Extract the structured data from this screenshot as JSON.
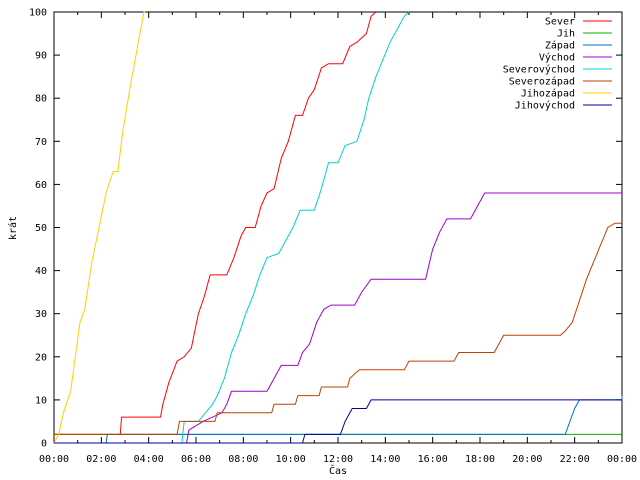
{
  "chart_data": {
    "type": "line",
    "title": "",
    "xlabel": "Čas",
    "ylabel": "krát",
    "xlim": [
      0,
      24
    ],
    "ylim": [
      0,
      100
    ],
    "x_ticks": [
      "00:00",
      "02:00",
      "04:00",
      "06:00",
      "08:00",
      "10:00",
      "12:00",
      "14:00",
      "16:00",
      "18:00",
      "20:00",
      "22:00",
      "00:00"
    ],
    "y_ticks": [
      0,
      10,
      20,
      30,
      40,
      50,
      60,
      70,
      80,
      90,
      100
    ],
    "grid": false,
    "legend_position": "top-right",
    "series": [
      {
        "name": "Sever",
        "color": "#ff0000",
        "points": [
          [
            0,
            2
          ],
          [
            2.8,
            2
          ],
          [
            2.85,
            6
          ],
          [
            4.5,
            6
          ],
          [
            4.6,
            9
          ],
          [
            4.85,
            14
          ],
          [
            5.2,
            19
          ],
          [
            5.5,
            20
          ],
          [
            5.8,
            22
          ],
          [
            6.1,
            30
          ],
          [
            6.35,
            34
          ],
          [
            6.6,
            39
          ],
          [
            7.3,
            39
          ],
          [
            7.6,
            43
          ],
          [
            7.9,
            48
          ],
          [
            8.1,
            50
          ],
          [
            8.5,
            50
          ],
          [
            8.75,
            55
          ],
          [
            9.0,
            58
          ],
          [
            9.3,
            59
          ],
          [
            9.6,
            66
          ],
          [
            9.9,
            70
          ],
          [
            10.2,
            76
          ],
          [
            10.5,
            76
          ],
          [
            10.75,
            80
          ],
          [
            11.0,
            82
          ],
          [
            11.3,
            87
          ],
          [
            11.6,
            88
          ],
          [
            12.2,
            88
          ],
          [
            12.5,
            92
          ],
          [
            12.8,
            93
          ],
          [
            13.2,
            95
          ],
          [
            13.4,
            99
          ],
          [
            13.6,
            100
          ]
        ]
      },
      {
        "name": "Jih",
        "color": "#00b000",
        "points": [
          [
            0,
            2
          ],
          [
            24,
            2
          ]
        ]
      },
      {
        "name": "Západ",
        "color": "#0070c0",
        "points": [
          [
            0,
            0
          ],
          [
            2.2,
            0
          ],
          [
            2.25,
            2
          ],
          [
            21.6,
            2
          ],
          [
            21.8,
            5
          ],
          [
            22.0,
            8
          ],
          [
            22.2,
            10
          ],
          [
            24,
            10
          ],
          [
            24,
            11
          ]
        ]
      },
      {
        "name": "Východ",
        "color": "#a000d0",
        "points": [
          [
            0,
            0
          ],
          [
            5.6,
            0
          ],
          [
            5.7,
            3
          ],
          [
            6.3,
            5
          ],
          [
            7.1,
            7
          ],
          [
            7.3,
            9
          ],
          [
            7.5,
            12
          ],
          [
            9.0,
            12
          ],
          [
            9.3,
            15
          ],
          [
            9.6,
            18
          ],
          [
            10.3,
            18
          ],
          [
            10.5,
            21
          ],
          [
            10.8,
            23
          ],
          [
            11.1,
            28
          ],
          [
            11.4,
            31
          ],
          [
            11.7,
            32
          ],
          [
            12.7,
            32
          ],
          [
            13.0,
            35
          ],
          [
            13.4,
            38
          ],
          [
            15.7,
            38
          ],
          [
            16.0,
            45
          ],
          [
            16.3,
            49
          ],
          [
            16.6,
            52
          ],
          [
            17.6,
            52
          ],
          [
            17.9,
            55
          ],
          [
            18.2,
            58
          ],
          [
            24,
            58
          ]
        ]
      },
      {
        "name": "Severovýchod",
        "color": "#00d0d0",
        "points": [
          [
            0,
            0
          ],
          [
            5.4,
            0
          ],
          [
            5.5,
            5
          ],
          [
            6.1,
            5
          ],
          [
            6.4,
            7
          ],
          [
            6.7,
            9
          ],
          [
            6.9,
            11
          ],
          [
            7.2,
            15
          ],
          [
            7.5,
            21
          ],
          [
            7.8,
            25
          ],
          [
            8.1,
            30
          ],
          [
            8.4,
            34
          ],
          [
            8.7,
            39
          ],
          [
            9.0,
            43
          ],
          [
            9.5,
            44
          ],
          [
            9.8,
            47
          ],
          [
            10.1,
            50
          ],
          [
            10.4,
            54
          ],
          [
            11.0,
            54
          ],
          [
            11.3,
            59
          ],
          [
            11.6,
            65
          ],
          [
            12.0,
            65
          ],
          [
            12.3,
            69
          ],
          [
            12.8,
            70
          ],
          [
            13.1,
            75
          ],
          [
            13.3,
            80
          ],
          [
            13.6,
            85
          ],
          [
            13.9,
            89
          ],
          [
            14.2,
            93
          ],
          [
            14.5,
            96
          ],
          [
            14.8,
            99
          ],
          [
            15.0,
            100
          ]
        ]
      },
      {
        "name": "Severozápad",
        "color": "#c04000",
        "points": [
          [
            0,
            2
          ],
          [
            5.2,
            2
          ],
          [
            5.3,
            5
          ],
          [
            6.8,
            5
          ],
          [
            6.9,
            7
          ],
          [
            9.2,
            7
          ],
          [
            9.3,
            9
          ],
          [
            10.2,
            9
          ],
          [
            10.3,
            11
          ],
          [
            11.2,
            11
          ],
          [
            11.3,
            13
          ],
          [
            12.4,
            13
          ],
          [
            12.5,
            15
          ],
          [
            12.9,
            17
          ],
          [
            14.8,
            17
          ],
          [
            15.0,
            19
          ],
          [
            16.9,
            19
          ],
          [
            17.1,
            21
          ],
          [
            18.6,
            21
          ],
          [
            18.8,
            23
          ],
          [
            19.0,
            25
          ],
          [
            21.4,
            25
          ],
          [
            21.6,
            26
          ],
          [
            21.9,
            28
          ],
          [
            22.2,
            33
          ],
          [
            22.5,
            38
          ],
          [
            22.8,
            42
          ],
          [
            23.1,
            46
          ],
          [
            23.4,
            50
          ],
          [
            23.7,
            51
          ],
          [
            24,
            51
          ]
        ]
      },
      {
        "name": "Jihozápad",
        "color": "#ffd000",
        "points": [
          [
            0,
            0
          ],
          [
            0.2,
            2
          ],
          [
            0.4,
            7
          ],
          [
            0.7,
            12
          ],
          [
            0.9,
            20
          ],
          [
            1.1,
            28
          ],
          [
            1.3,
            31
          ],
          [
            1.6,
            42
          ],
          [
            1.9,
            50
          ],
          [
            2.2,
            58
          ],
          [
            2.5,
            63
          ],
          [
            2.7,
            63
          ],
          [
            2.9,
            72
          ],
          [
            3.2,
            82
          ],
          [
            3.5,
            91
          ],
          [
            3.8,
            100
          ],
          [
            3.85,
            100
          ]
        ]
      },
      {
        "name": "Jihovýchod",
        "color": "#0000a0",
        "points": [
          [
            0,
            0
          ],
          [
            10.5,
            0
          ],
          [
            10.6,
            2
          ],
          [
            12.1,
            2
          ],
          [
            12.3,
            5
          ],
          [
            12.6,
            8
          ],
          [
            13.2,
            8
          ],
          [
            13.4,
            10
          ],
          [
            24,
            10
          ]
        ]
      }
    ]
  }
}
